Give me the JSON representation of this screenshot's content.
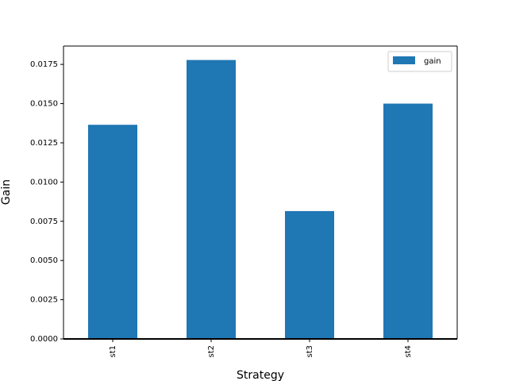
{
  "chart_data": {
    "type": "bar",
    "categories": [
      "st1",
      "st2",
      "st3",
      "st4"
    ],
    "series": [
      {
        "name": "gain",
        "values": [
          0.01365,
          0.01778,
          0.00815,
          0.015
        ],
        "color": "#1f77b4"
      }
    ],
    "xlabel": "Strategy",
    "ylabel": "Gain",
    "ylim": [
      0,
      0.01867
    ],
    "yticks": [
      "0.0000",
      "0.0025",
      "0.0050",
      "0.0075",
      "0.0100",
      "0.0125",
      "0.0150",
      "0.0175"
    ],
    "ytick_values": [
      0,
      0.0025,
      0.005,
      0.0075,
      0.01,
      0.0125,
      0.015,
      0.0175
    ],
    "legend_position": "top-right",
    "grid": false
  }
}
